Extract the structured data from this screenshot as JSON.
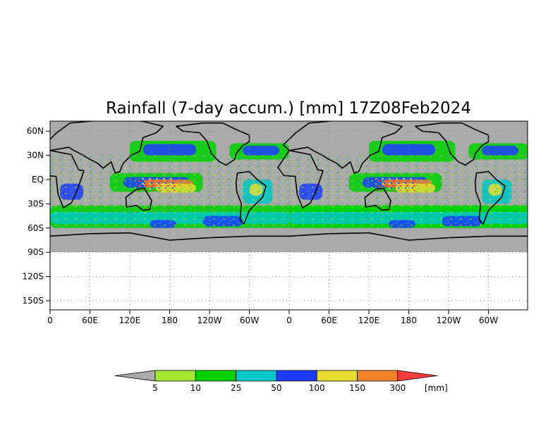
{
  "title": "Rainfall (7-day accum.) [mm] 17Z08Feb2024",
  "colors": {
    "no_data_gray": "#aaaaaa",
    "background": "#ffffff",
    "grid": "#8a8a8a",
    "coastline": "#000000"
  },
  "x_ticks": [
    "0",
    "60E",
    "120E",
    "180",
    "120W",
    "60W",
    "0",
    "60E",
    "120E",
    "180",
    "120W",
    "60W"
  ],
  "y_ticks": [
    "60N",
    "30N",
    "EQ",
    "30S",
    "60S",
    "90S",
    "120S",
    "150S"
  ],
  "colorbar": {
    "unit": "[mm]",
    "thresholds": [
      "5",
      "10",
      "25",
      "50",
      "100",
      "150",
      "300"
    ],
    "bins": [
      {
        "label": "< 5",
        "color": "#aaaaaa"
      },
      {
        "label": "5-10",
        "color": "#a0e632"
      },
      {
        "label": "10-25",
        "color": "#00d200"
      },
      {
        "label": "25-50",
        "color": "#00c8c8"
      },
      {
        "label": "50-100",
        "color": "#1e3cff"
      },
      {
        "label": "100-150",
        "color": "#e6dc32"
      },
      {
        "label": "150-300",
        "color": "#f08228"
      },
      {
        "label": "> 300",
        "color": "#fa3c3c"
      }
    ]
  }
}
